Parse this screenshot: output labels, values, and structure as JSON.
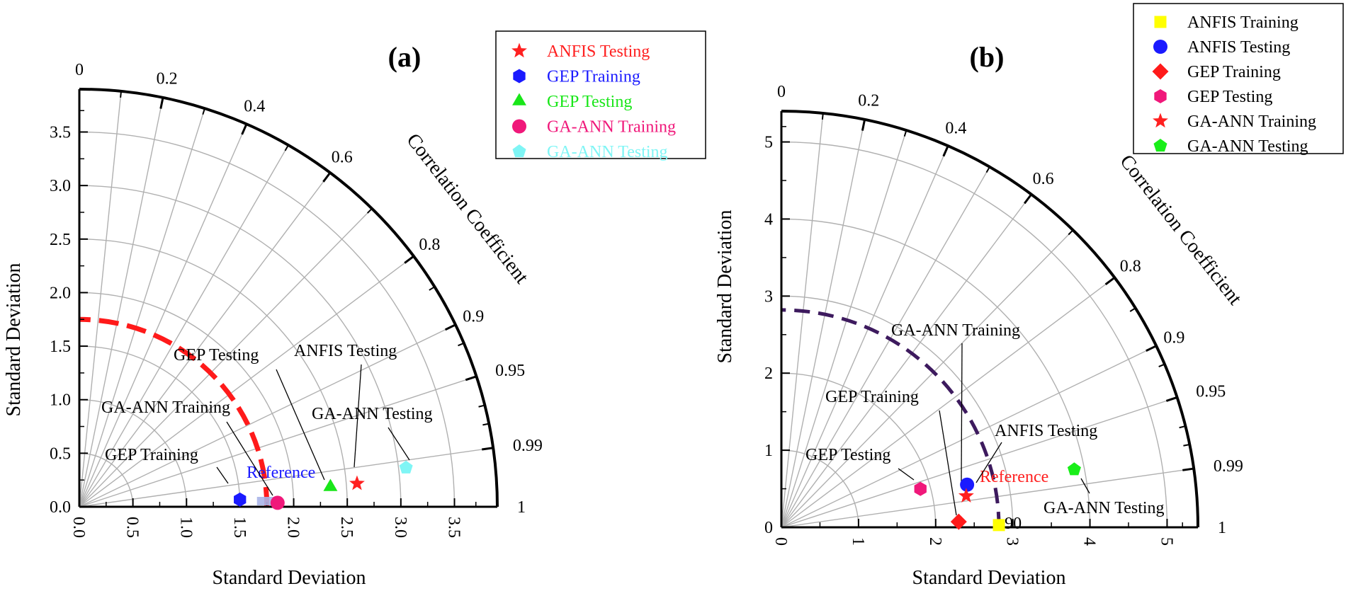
{
  "chart_data": [
    {
      "type": "taylor",
      "panel_label": "(a)",
      "xlabel": "Standard Deviation",
      "ylabel": "Standard Deviation",
      "corr_label": "Correlation Coefficient",
      "max_std": 3.9,
      "ticks": [
        "0.0",
        "0.5",
        "1.0",
        "1.5",
        "2.0",
        "2.5",
        "3.0",
        "3.5"
      ],
      "tick_values": [
        0,
        0.5,
        1.0,
        1.5,
        2.0,
        2.5,
        3.0,
        3.5
      ],
      "corr_ticks": [
        "0",
        "0.2",
        "0.4",
        "0.6",
        "0.8",
        "0.9",
        "0.95",
        "0.99",
        "1"
      ],
      "corr_values": [
        0,
        0.2,
        0.4,
        0.6,
        0.8,
        0.9,
        0.95,
        0.99,
        1
      ],
      "reference": {
        "label": "Reference",
        "std": 1.75,
        "color": "#1a1aff",
        "arc_color": "#ff1a1a",
        "arc_dashed": "long"
      },
      "legend": [
        {
          "label": "ANFIS Testing",
          "marker": "star",
          "color": "#ff2020"
        },
        {
          "label": "GEP Training",
          "marker": "hexagon",
          "color": "#1a1aff"
        },
        {
          "label": "GEP Testing",
          "marker": "triangle",
          "color": "#19e619"
        },
        {
          "label": "GA-ANN Training",
          "marker": "circle",
          "color": "#f0187a"
        },
        {
          "label": "GA-ANN Testing",
          "marker": "pentagon",
          "color": "#7ff5f5"
        }
      ],
      "points": [
        {
          "name": "ANFIS Testing",
          "std": 2.6,
          "corr": 0.9965,
          "marker": "star",
          "color": "#ff2020"
        },
        {
          "name": "GEP Training",
          "std": 1.5,
          "corr": 0.999,
          "marker": "hexagon",
          "color": "#1a1aff"
        },
        {
          "name": "GEP Testing",
          "std": 2.35,
          "corr": 0.9969,
          "marker": "triangle",
          "color": "#19e619"
        },
        {
          "name": "GA-ANN Training",
          "std": 1.85,
          "corr": 0.9998,
          "marker": "circle",
          "color": "#f0187a"
        },
        {
          "name": "GA-ANN Testing",
          "std": 3.07,
          "corr": 0.9929,
          "marker": "pentagon",
          "color": "#7ff5f5"
        }
      ],
      "annotations": [
        {
          "text": "GEP Testing",
          "target": "GEP Testing"
        },
        {
          "text": "ANFIS Testing",
          "target": "ANFIS Testing"
        },
        {
          "text": "GA-ANN Training",
          "target": "GA-ANN Training"
        },
        {
          "text": "GA-ANN Testing",
          "target": "GA-ANN Testing"
        },
        {
          "text": "GEP Training",
          "target": "GEP Training"
        }
      ]
    },
    {
      "type": "taylor",
      "panel_label": "(b)",
      "xlabel": "Standard Deviation",
      "ylabel": "Standard Deviation",
      "corr_label": "Correlation Coefficient",
      "max_std": 5.4,
      "ticks": [
        "0",
        "1",
        "2",
        "3",
        "4",
        "5"
      ],
      "tick_values": [
        0,
        1,
        2,
        3,
        4,
        5
      ],
      "corr_ticks": [
        "0",
        "0.2",
        "0.4",
        "0.6",
        "0.8",
        "0.9",
        "0.95",
        "0.99",
        "1"
      ],
      "corr_values": [
        0,
        0.2,
        0.4,
        0.6,
        0.8,
        0.9,
        0.95,
        0.99,
        1
      ],
      "reference": {
        "label": "Reference",
        "std": 2.82,
        "color": "#ff2020",
        "arc_color": "#3d1a5e",
        "arc_dashed": "medium"
      },
      "legend": [
        {
          "label": "ANFIS Training",
          "marker": "square",
          "color": "#ffff00"
        },
        {
          "label": "ANFIS Testing",
          "marker": "circle",
          "color": "#1a1aff"
        },
        {
          "label": "GEP Training",
          "marker": "diamond",
          "color": "#ff1a1a"
        },
        {
          "label": "GEP Testing",
          "marker": "hexagon",
          "color": "#f0187a"
        },
        {
          "label": "GA-ANN Training",
          "marker": "star",
          "color": "#ff2020"
        },
        {
          "label": "GA-ANN Testing",
          "marker": "pentagon",
          "color": "#19ee19"
        }
      ],
      "points": [
        {
          "name": "ANFIS Training",
          "std": 2.82,
          "corr": 0.99995,
          "marker": "square",
          "color": "#ffff00"
        },
        {
          "name": "ANFIS Testing",
          "std": 2.47,
          "corr": 0.9746,
          "marker": "circle",
          "color": "#1a1aff"
        },
        {
          "name": "GEP Training",
          "std": 2.3,
          "corr": 0.9995,
          "marker": "diamond",
          "color": "#ff1a1a"
        },
        {
          "name": "GEP Testing",
          "std": 1.87,
          "corr": 0.9638,
          "marker": "hexagon",
          "color": "#f0187a"
        },
        {
          "name": "GA-ANN Training",
          "std": 2.43,
          "corr": 0.9859,
          "marker": "star",
          "color": "#ff2020"
        },
        {
          "name": "GA-ANN Testing",
          "std": 3.87,
          "corr": 0.981,
          "marker": "pentagon",
          "color": "#19ee19"
        }
      ],
      "annotations": [
        {
          "text": "GA-ANN Training",
          "target": "GA-ANN Training"
        },
        {
          "text": "GEP Training",
          "target": "GEP Training"
        },
        {
          "text": "ANFIS Testing",
          "target": "ANFIS Testing"
        },
        {
          "text": "GEP Testing",
          "target": "GEP Testing"
        },
        {
          "text": "GA-ANN Testing",
          "target": "GA-ANN Testing"
        }
      ],
      "ref_tick_text": "90"
    }
  ]
}
